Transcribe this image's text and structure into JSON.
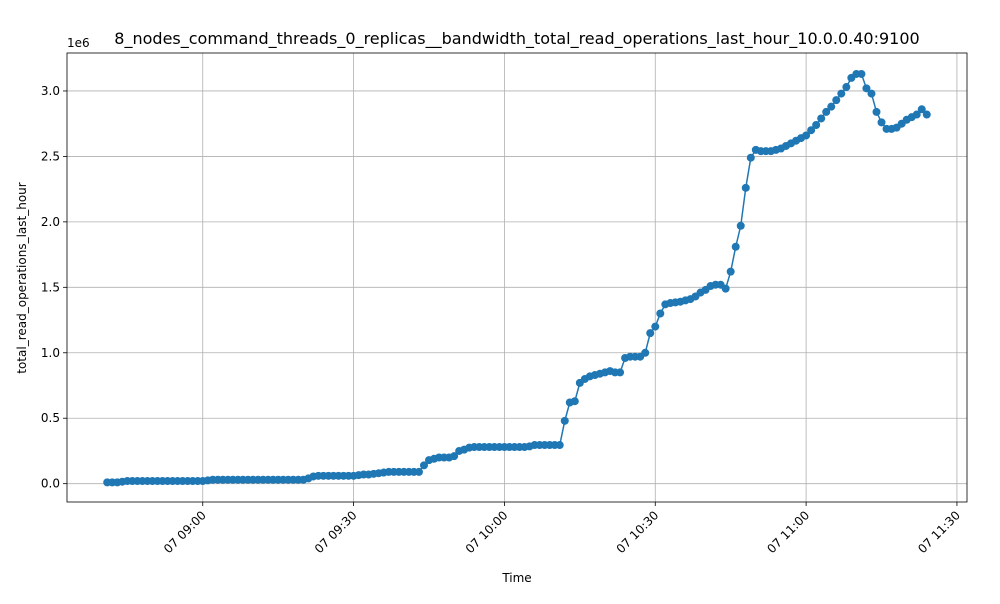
{
  "chart_data": {
    "type": "line",
    "title": "8_nodes_command_threads_0_replicas__bandwidth_total_read_operations_last_hour_10.0.0.40:9100",
    "x_label": "Time",
    "y_label": "total_read_operations_last_hour",
    "y_offset_label": "1e6",
    "color": "#1f77b4",
    "grid": true,
    "xlim": [
      "07 08:33",
      "07 11:32"
    ],
    "xticks": [
      "07 09:00",
      "07 09:30",
      "07 10:00",
      "07 10:30",
      "07 11:00",
      "07 11:30"
    ],
    "ylim": [
      -0.14,
      3.29
    ],
    "yticks": [
      {
        "value": 0,
        "label": "0.0"
      },
      {
        "value": 0.5,
        "label": "0.5"
      },
      {
        "value": 1,
        "label": "1.0"
      },
      {
        "value": 1.5,
        "label": "1.5"
      },
      {
        "value": 2,
        "label": "2.0"
      },
      {
        "value": 2.5,
        "label": "2.5"
      },
      {
        "value": 3,
        "label": "3.0"
      }
    ],
    "x": [
      "07 08:41",
      "07 08:42",
      "07 08:43",
      "07 08:44",
      "07 08:45",
      "07 08:46",
      "07 08:47",
      "07 08:48",
      "07 08:49",
      "07 08:50",
      "07 08:51",
      "07 08:52",
      "07 08:53",
      "07 08:54",
      "07 08:55",
      "07 08:56",
      "07 08:57",
      "07 08:58",
      "07 08:59",
      "07 09:00",
      "07 09:01",
      "07 09:02",
      "07 09:03",
      "07 09:04",
      "07 09:05",
      "07 09:06",
      "07 09:07",
      "07 09:08",
      "07 09:09",
      "07 09:10",
      "07 09:11",
      "07 09:12",
      "07 09:13",
      "07 09:14",
      "07 09:15",
      "07 09:16",
      "07 09:17",
      "07 09:18",
      "07 09:19",
      "07 09:20",
      "07 09:21",
      "07 09:22",
      "07 09:23",
      "07 09:24",
      "07 09:25",
      "07 09:26",
      "07 09:27",
      "07 09:28",
      "07 09:29",
      "07 09:30",
      "07 09:31",
      "07 09:32",
      "07 09:33",
      "07 09:34",
      "07 09:35",
      "07 09:36",
      "07 09:37",
      "07 09:38",
      "07 09:39",
      "07 09:40",
      "07 09:41",
      "07 09:42",
      "07 09:43",
      "07 09:44",
      "07 09:45",
      "07 09:46",
      "07 09:47",
      "07 09:48",
      "07 09:49",
      "07 09:50",
      "07 09:51",
      "07 09:52",
      "07 09:53",
      "07 09:54",
      "07 09:55",
      "07 09:56",
      "07 09:57",
      "07 09:58",
      "07 09:59",
      "07 10:00",
      "07 10:01",
      "07 10:02",
      "07 10:03",
      "07 10:04",
      "07 10:05",
      "07 10:06",
      "07 10:07",
      "07 10:08",
      "07 10:09",
      "07 10:10",
      "07 10:11",
      "07 10:12",
      "07 10:13",
      "07 10:14",
      "07 10:15",
      "07 10:16",
      "07 10:17",
      "07 10:18",
      "07 10:19",
      "07 10:20",
      "07 10:21",
      "07 10:22",
      "07 10:23",
      "07 10:24",
      "07 10:25",
      "07 10:26",
      "07 10:27",
      "07 10:28",
      "07 10:29",
      "07 10:30",
      "07 10:31",
      "07 10:32",
      "07 10:33",
      "07 10:34",
      "07 10:35",
      "07 10:36",
      "07 10:37",
      "07 10:38",
      "07 10:39",
      "07 10:40",
      "07 10:41",
      "07 10:42",
      "07 10:43",
      "07 10:44",
      "07 10:45",
      "07 10:46",
      "07 10:47",
      "07 10:48",
      "07 10:49",
      "07 10:50",
      "07 10:51",
      "07 10:52",
      "07 10:53",
      "07 10:54",
      "07 10:55",
      "07 10:56",
      "07 10:57",
      "07 10:58",
      "07 10:59",
      "07 11:00",
      "07 11:01",
      "07 11:02",
      "07 11:03",
      "07 11:04",
      "07 11:05",
      "07 11:06",
      "07 11:07",
      "07 11:08",
      "07 11:09",
      "07 11:10",
      "07 11:11",
      "07 11:12",
      "07 11:13",
      "07 11:14",
      "07 11:15",
      "07 11:16",
      "07 11:17",
      "07 11:18",
      "07 11:19",
      "07 11:20",
      "07 11:21",
      "07 11:22",
      "07 11:23",
      "07 11:24"
    ],
    "values": [
      0.01,
      0.01,
      0.01,
      0.015,
      0.02,
      0.02,
      0.02,
      0.02,
      0.02,
      0.02,
      0.02,
      0.02,
      0.02,
      0.02,
      0.02,
      0.02,
      0.02,
      0.02,
      0.02,
      0.02,
      0.025,
      0.03,
      0.03,
      0.03,
      0.03,
      0.03,
      0.03,
      0.03,
      0.03,
      0.03,
      0.03,
      0.03,
      0.03,
      0.03,
      0.03,
      0.03,
      0.03,
      0.03,
      0.03,
      0.03,
      0.04,
      0.055,
      0.06,
      0.06,
      0.06,
      0.06,
      0.06,
      0.06,
      0.06,
      0.06,
      0.065,
      0.07,
      0.07,
      0.075,
      0.08,
      0.085,
      0.09,
      0.09,
      0.09,
      0.09,
      0.09,
      0.09,
      0.09,
      0.14,
      0.18,
      0.19,
      0.2,
      0.2,
      0.2,
      0.21,
      0.25,
      0.26,
      0.275,
      0.28,
      0.28,
      0.28,
      0.28,
      0.28,
      0.28,
      0.28,
      0.28,
      0.28,
      0.28,
      0.28,
      0.285,
      0.295,
      0.295,
      0.295,
      0.295,
      0.295,
      0.295,
      0.48,
      0.62,
      0.63,
      0.77,
      0.8,
      0.82,
      0.83,
      0.84,
      0.85,
      0.86,
      0.85,
      0.85,
      0.96,
      0.97,
      0.97,
      0.97,
      1.0,
      1.15,
      1.2,
      1.3,
      1.37,
      1.38,
      1.385,
      1.39,
      1.4,
      1.41,
      1.43,
      1.46,
      1.48,
      1.51,
      1.52,
      1.52,
      1.49,
      1.62,
      1.81,
      1.97,
      2.26,
      2.49,
      2.55,
      2.54,
      2.54,
      2.54,
      2.55,
      2.56,
      2.58,
      2.6,
      2.62,
      2.64,
      2.66,
      2.7,
      2.74,
      2.79,
      2.84,
      2.88,
      2.93,
      2.98,
      3.03,
      3.1,
      3.13,
      3.13,
      3.02,
      2.98,
      2.84,
      2.76,
      2.71,
      2.71,
      2.72,
      2.75,
      2.78,
      2.8,
      2.82,
      2.86,
      2.82
    ]
  }
}
